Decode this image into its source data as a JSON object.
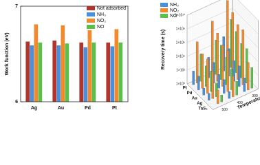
{
  "chart_data": [
    {
      "type": "bar",
      "y_label": "Work function (eV)",
      "categories": [
        "Ag",
        "Au",
        "Pd",
        "Pt"
      ],
      "series": [
        {
          "name": "Not adsorbed",
          "color": "#b0362b",
          "values": [
            6.63,
            6.64,
            6.62,
            6.62
          ]
        },
        {
          "name": "NH₃",
          "color": "#4a8fdc",
          "values": [
            6.59,
            6.59,
            6.57,
            6.58
          ]
        },
        {
          "name": "NO₂",
          "color": "#f2892c",
          "values": [
            6.81,
            6.8,
            6.75,
            6.76
          ]
        },
        {
          "name": "NO",
          "color": "#5cbf4a",
          "values": [
            6.62,
            6.61,
            6.62,
            6.62
          ]
        }
      ],
      "ylim": [
        6,
        7
      ],
      "yticks": [
        6,
        7
      ],
      "legend": "top-right"
    },
    {
      "type": "bar3d",
      "y_label": "Recovery time (s)",
      "x_label": "Temperature (K)",
      "categories": [
        "Pt",
        "Pd",
        "Au",
        "Ag",
        "TaS₂"
      ],
      "temperatures": [
        500,
        400,
        300
      ],
      "series": [
        {
          "name": "NH₃",
          "color": "#4a8fdc",
          "values": [
            [
              100.0,
              1000.0,
              100000.0
            ],
            [
              100.0,
              1000.0,
              10000.0
            ],
            [
              10.0,
              100.0,
              1000.0
            ],
            [
              10.0,
              100.0,
              1000.0
            ],
            [
              1.0,
              10.0,
              100.0
            ]
          ]
        },
        {
          "name": "NO₂",
          "color": "#f2892c",
          "values": [
            [
              1000000.0,
              100000000.0,
              10000000000.0
            ],
            [
              100000.0,
              10000000.0,
              1000000000.0
            ],
            [
              100000.0,
              1000000.0,
              100000000.0
            ],
            [
              10000.0,
              1000000.0,
              100000000.0
            ],
            [
              100.0,
              1000.0,
              10000.0
            ]
          ]
        },
        {
          "name": "NO",
          "color": "#5cbf4a",
          "values": [
            [
              10000.0,
              100000.0,
              10000000.0
            ],
            [
              1000.0,
              100000.0,
              1000000.0
            ],
            [
              1000.0,
              10000.0,
              100000.0
            ],
            [
              100.0,
              1000.0,
              100000.0
            ],
            [
              10.0,
              100.0,
              1000.0
            ]
          ]
        }
      ],
      "ylim": [
        1,
        10000000000.0
      ],
      "log_scale": true,
      "yticks": [
        {
          "value": 1,
          "label": "1×10⁰"
        },
        {
          "value": 100.0,
          "label": "1×10²"
        },
        {
          "value": 10000.0,
          "label": "1×10⁴"
        },
        {
          "value": 1000000.0,
          "label": "1×10⁶"
        },
        {
          "value": 100000000.0,
          "label": "1×10⁸"
        },
        {
          "value": 10000000000.0,
          "label": "1×10¹⁰"
        }
      ],
      "legend": "top-left"
    }
  ]
}
